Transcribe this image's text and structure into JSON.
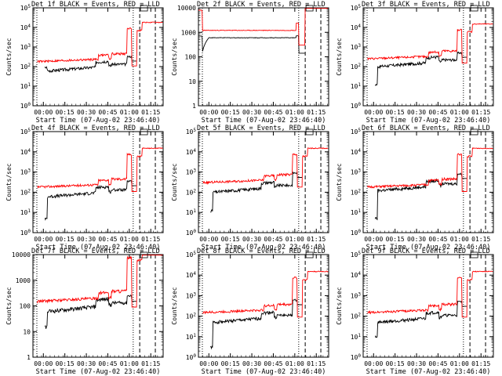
{
  "colors": {
    "background": "#ffffff",
    "axes": "#000000",
    "events": "#000000",
    "lld": "#ff0000"
  },
  "chart_data": [
    {
      "type": "line",
      "panel": 1,
      "title": "Det 1f BLACK = Events, RED = LLD",
      "ylabel": "Counts/sec",
      "xlabel": "Start Time (07-Aug-02 23:46:40)",
      "xticks": [
        "00:00",
        "00:15",
        "00:30",
        "00:45",
        "01:00",
        "01:15"
      ],
      "yticks": [
        "10^0",
        "10^1",
        "10^2",
        "10^3",
        "10^4",
        "10^5"
      ],
      "ylim": [
        1,
        100000
      ],
      "yscale": "log",
      "vlines_dotted": [
        3,
        77
      ],
      "vlines_dashed": [
        82,
        94
      ],
      "series": [
        {
          "name": "Events",
          "color": "#000000",
          "shape": "events_low",
          "start": 60,
          "end": 320,
          "dip": 90
        },
        {
          "name": "LLD",
          "color": "#ff0000",
          "shape": "lld_low",
          "start": 180,
          "end": 18000
        }
      ]
    },
    {
      "type": "line",
      "panel": 2,
      "title": "Det 2f BLACK = Events, RED = LLD",
      "ylabel": "Counts/sec",
      "xlabel": "Start Time (07-Aug-02 23:46:40)",
      "xticks": [
        "00:00",
        "00:15",
        "00:30",
        "00:45",
        "01:00",
        "01:15"
      ],
      "yticks": [
        "1",
        "10",
        "100",
        "1000",
        "10000"
      ],
      "ylim": [
        1,
        10000
      ],
      "yscale": "log",
      "vlines_dotted": [
        3,
        77
      ],
      "vlines_dashed": [
        82,
        94
      ],
      "series": [
        {
          "name": "Events",
          "color": "#000000",
          "shape": "events_flat",
          "start": 600,
          "end": 700,
          "dip": 150
        },
        {
          "name": "LLD",
          "color": "#ff0000",
          "shape": "lld_flat",
          "start": 1200,
          "end": 15000
        }
      ]
    },
    {
      "type": "line",
      "panel": 3,
      "title": "Det 3f BLACK = Events, RED = LLD",
      "ylabel": "Counts/sec",
      "xlabel": "Start Time (07-Aug-02 23:46:40)",
      "xticks": [
        "00:00",
        "00:15",
        "00:30",
        "00:45",
        "01:00",
        "01:15"
      ],
      "yticks": [
        "10^0",
        "10^1",
        "10^2",
        "10^3",
        "10^4",
        "10^5"
      ],
      "ylim": [
        1,
        100000
      ],
      "yscale": "log",
      "vlines_dotted": [
        3,
        77
      ],
      "vlines_dashed": [
        82,
        94
      ],
      "series": [
        {
          "name": "Events",
          "color": "#000000",
          "shape": "events_mid",
          "start": 100,
          "end": 500,
          "dip": 12
        },
        {
          "name": "LLD",
          "color": "#ff0000",
          "shape": "lld_mid",
          "start": 250,
          "end": 15000
        }
      ]
    },
    {
      "type": "line",
      "panel": 4,
      "title": "Det 4f BLACK = Events, RED = LLD",
      "ylabel": "Counts/sec",
      "xlabel": "Start Time (07-Aug-02 23:46:40)",
      "xticks": [
        "00:00",
        "00:15",
        "00:30",
        "00:45",
        "01:00",
        "01:15"
      ],
      "yticks": [
        "10^0",
        "10^1",
        "10^2",
        "10^3",
        "10^4",
        "10^5"
      ],
      "ylim": [
        1,
        100000
      ],
      "yscale": "log",
      "vlines_dotted": [
        3,
        77
      ],
      "vlines_dashed": [
        82,
        94
      ],
      "series": [
        {
          "name": "Events",
          "color": "#000000",
          "shape": "events_low",
          "start": 60,
          "end": 350,
          "dip": 5
        },
        {
          "name": "LLD",
          "color": "#ff0000",
          "shape": "lld_low",
          "start": 180,
          "end": 15000
        }
      ]
    },
    {
      "type": "line",
      "panel": 5,
      "title": "Det 5f BLACK = Events, RED = LLD",
      "ylabel": "Counts/sec",
      "xlabel": "Start Time (07-Aug-02 23:46:40)",
      "xticks": [
        "00:00",
        "00:15",
        "00:30",
        "00:45",
        "01:00",
        "01:15"
      ],
      "yticks": [
        "10^0",
        "10^1",
        "10^2",
        "10^3",
        "10^4",
        "10^5"
      ],
      "ylim": [
        1,
        100000
      ],
      "yscale": "log",
      "vlines_dotted": [
        3,
        77
      ],
      "vlines_dashed": [
        82,
        94
      ],
      "series": [
        {
          "name": "Events",
          "color": "#000000",
          "shape": "events_mid",
          "start": 100,
          "end": 900,
          "dip": 12
        },
        {
          "name": "LLD",
          "color": "#ff0000",
          "shape": "lld_mid",
          "start": 300,
          "end": 15000
        }
      ]
    },
    {
      "type": "line",
      "panel": 6,
      "title": "Det 6f BLACK = Events, RED = LLD",
      "ylabel": "Counts/sec",
      "xlabel": "Start Time (07-Aug-02 23:46:40)",
      "xticks": [
        "00:00",
        "00:15",
        "00:30",
        "00:45",
        "01:00",
        "01:15"
      ],
      "yticks": [
        "10^0",
        "10^1",
        "10^2",
        "10^3",
        "10^4",
        "10^5"
      ],
      "ylim": [
        1,
        100000
      ],
      "yscale": "log",
      "vlines_dotted": [
        3,
        77
      ],
      "vlines_dashed": [
        82,
        94
      ],
      "series": [
        {
          "name": "Events",
          "color": "#000000",
          "shape": "events_mid",
          "start": 120,
          "end": 800,
          "dip": 5
        },
        {
          "name": "LLD",
          "color": "#ff0000",
          "shape": "lld_mid",
          "start": 180,
          "end": 15000
        }
      ]
    },
    {
      "type": "line",
      "panel": 7,
      "title": "Det 7f BLACK = Events, RED = LLD",
      "ylabel": "Counts/sec",
      "xlabel": "Start Time (07-Aug-02 23:46:40)",
      "xticks": [
        "00:00",
        "00:15",
        "00:30",
        "00:45",
        "01:00",
        "01:15"
      ],
      "yticks": [
        "1",
        "10",
        "100",
        "1000",
        "10000"
      ],
      "ylim": [
        1,
        10000
      ],
      "yscale": "log",
      "vlines_dotted": [
        3,
        77
      ],
      "vlines_dashed": [
        82,
        94
      ],
      "series": [
        {
          "name": "Events",
          "color": "#000000",
          "shape": "events_low",
          "start": 60,
          "end": 250,
          "dip": 15
        },
        {
          "name": "LLD",
          "color": "#ff0000",
          "shape": "lld_low",
          "start": 150,
          "end": 15000
        }
      ]
    },
    {
      "type": "line",
      "panel": 8,
      "title": "Det 8f BLACK = Events, RED = LLD",
      "ylabel": "Counts/sec",
      "xlabel": "Start Time (07-Aug-02 23:46:40)",
      "xticks": [
        "00:00",
        "00:15",
        "00:30",
        "00:45",
        "01:00",
        "01:15"
      ],
      "yticks": [
        "10^0",
        "10^1",
        "10^2",
        "10^3",
        "10^4",
        "10^5"
      ],
      "ylim": [
        1,
        100000
      ],
      "yscale": "log",
      "vlines_dotted": [
        3,
        77
      ],
      "vlines_dashed": [
        82,
        94
      ],
      "series": [
        {
          "name": "Events",
          "color": "#000000",
          "shape": "events_mid",
          "start": 50,
          "end": 600,
          "dip": 3
        },
        {
          "name": "LLD",
          "color": "#ff0000",
          "shape": "lld_mid",
          "start": 150,
          "end": 15000
        }
      ]
    },
    {
      "type": "line",
      "panel": 9,
      "title": "Det 9f BLACK = Events, RED = LLD",
      "ylabel": "Counts/sec",
      "xlabel": "Start Time (07-Aug-02 23:46:40)",
      "xticks": [
        "00:00",
        "00:15",
        "00:30",
        "00:45",
        "01:00",
        "01:15"
      ],
      "yticks": [
        "10^0",
        "10^1",
        "10^2",
        "10^3",
        "10^4",
        "10^5"
      ],
      "ylim": [
        1,
        100000
      ],
      "yscale": "log",
      "vlines_dotted": [
        3,
        77
      ],
      "vlines_dashed": [
        82,
        94
      ],
      "series": [
        {
          "name": "Events",
          "color": "#000000",
          "shape": "events_mid",
          "start": 50,
          "end": 500,
          "dip": 10
        },
        {
          "name": "LLD",
          "color": "#ff0000",
          "shape": "lld_mid",
          "start": 150,
          "end": 15000
        }
      ]
    }
  ]
}
